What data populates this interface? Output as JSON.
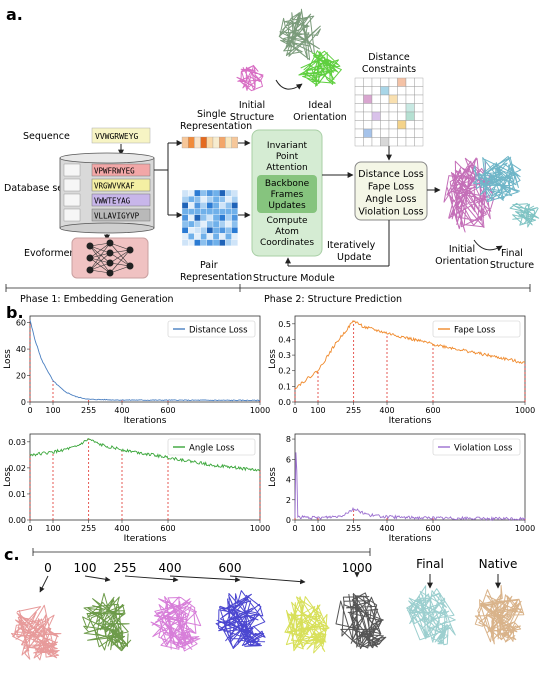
{
  "panel_labels": {
    "a": "a.",
    "b": "b.",
    "c": "c."
  },
  "panel_a": {
    "sequence_label": "Sequence",
    "sequence": "VVWGRWEYG",
    "database_label": "Database search",
    "msa": [
      "VPWFRWYEG",
      "VRGWVVKAF",
      "VWWTEYAG",
      "VLLAVIGYVP"
    ],
    "msa_colors": [
      "#f2a7a7",
      "#f4efa3",
      "#c8b6ea",
      "#b9b9b9"
    ],
    "evoformer_label": "Evoformer",
    "single_rep": "Single\nRepresentation",
    "pair_rep": "Pair\nRepresentation",
    "module_steps": [
      "Invariant\nPoint\nAttention",
      "Backbone\nFrames\nUpdates",
      "Compute\nAtom\nCoordinates"
    ],
    "module_label": "Structure Module",
    "initial_structure": "Initial\nStructure",
    "ideal_orientation": "Ideal\nOrientation",
    "distance_constraints": "Distance\nConstraints",
    "losses": [
      "Distance Loss",
      "Fape Loss",
      "Angle Loss",
      "Violation Loss"
    ],
    "iter_update": "Iteratively\nUpdate",
    "initial_orientation": "Initial\nOrientation",
    "final_structure": "Final\nStructure",
    "phase1": "Phase 1: Embedding Generation",
    "phase2": "Phase 2: Structure Prediction"
  },
  "chart_data": [
    {
      "type": "line",
      "title": "",
      "xlabel": "Iterations",
      "ylabel": "Loss",
      "legend": "Distance Loss",
      "legend_pos": "top-right",
      "color": "#4a7fc1",
      "xlim": [
        0,
        1000
      ],
      "ylim": [
        0,
        65
      ],
      "yticks": [
        0,
        20,
        40,
        60
      ],
      "xticks": [
        0,
        100,
        255,
        400,
        600,
        1000
      ],
      "markers": [
        0,
        100,
        255,
        400,
        600,
        1000
      ],
      "points": [
        [
          0,
          62
        ],
        [
          20,
          48
        ],
        [
          50,
          32
        ],
        [
          100,
          16
        ],
        [
          150,
          8
        ],
        [
          200,
          4
        ],
        [
          255,
          2
        ],
        [
          400,
          1.5
        ],
        [
          600,
          1.4
        ],
        [
          1000,
          1.2
        ]
      ]
    },
    {
      "type": "line",
      "title": "",
      "xlabel": "Iterations",
      "ylabel": "Loss",
      "legend": "Fape Loss",
      "legend_pos": "top-right",
      "color": "#f08a2c",
      "xlim": [
        0,
        1000
      ],
      "ylim": [
        0,
        0.55
      ],
      "yticks": [
        0.0,
        0.1,
        0.2,
        0.3,
        0.4,
        0.5
      ],
      "xticks": [
        0,
        100,
        255,
        400,
        600,
        1000
      ],
      "markers": [
        0,
        100,
        255,
        400,
        600,
        1000
      ],
      "points": [
        [
          0,
          0.09
        ],
        [
          100,
          0.2
        ],
        [
          175,
          0.37
        ],
        [
          255,
          0.52
        ],
        [
          300,
          0.48
        ],
        [
          400,
          0.44
        ],
        [
          600,
          0.37
        ],
        [
          800,
          0.31
        ],
        [
          1000,
          0.25
        ]
      ]
    },
    {
      "type": "line",
      "title": "",
      "xlabel": "Iterations",
      "ylabel": "Loss",
      "legend": "Angle Loss",
      "legend_pos": "top-right",
      "color": "#3aa63a",
      "xlim": [
        0,
        1000
      ],
      "ylim": [
        0,
        0.033
      ],
      "yticks": [
        0.0,
        0.01,
        0.02,
        0.03
      ],
      "xticks": [
        0,
        100,
        255,
        400,
        600,
        1000
      ],
      "markers": [
        0,
        100,
        255,
        400,
        600,
        1000
      ],
      "points": [
        [
          0,
          0.025
        ],
        [
          100,
          0.026
        ],
        [
          200,
          0.028
        ],
        [
          255,
          0.031
        ],
        [
          300,
          0.029
        ],
        [
          400,
          0.027
        ],
        [
          600,
          0.024
        ],
        [
          800,
          0.021
        ],
        [
          1000,
          0.019
        ]
      ]
    },
    {
      "type": "line",
      "title": "",
      "xlabel": "Iterations",
      "ylabel": "Loss",
      "legend": "Violation Loss",
      "legend_pos": "top-right",
      "color": "#9b6fd0",
      "xlim": [
        0,
        1000
      ],
      "ylim": [
        0,
        8.5
      ],
      "yticks": [
        0,
        2,
        4,
        6,
        8
      ],
      "xticks": [
        0,
        100,
        255,
        400,
        600,
        1000
      ],
      "markers": [
        0,
        100,
        255,
        400,
        600,
        1000
      ],
      "points": [
        [
          0,
          0.2
        ],
        [
          5,
          8.3
        ],
        [
          12,
          0.3
        ],
        [
          100,
          0.2
        ],
        [
          200,
          0.4
        ],
        [
          255,
          1.1
        ],
        [
          320,
          0.5
        ],
        [
          400,
          0.3
        ],
        [
          600,
          0.2
        ],
        [
          1000,
          0.1
        ]
      ]
    }
  ],
  "panel_c": {
    "milestones": [
      "0",
      "100",
      "255",
      "400",
      "600",
      "1000"
    ],
    "final_label": "Final",
    "native_label": "Native",
    "colors": [
      "#e79a9a",
      "#6d9b4a",
      "#d77ed9",
      "#4b46d0",
      "#d8e05a",
      "#555555",
      "#9ccfcf",
      "#d9b38a"
    ]
  }
}
